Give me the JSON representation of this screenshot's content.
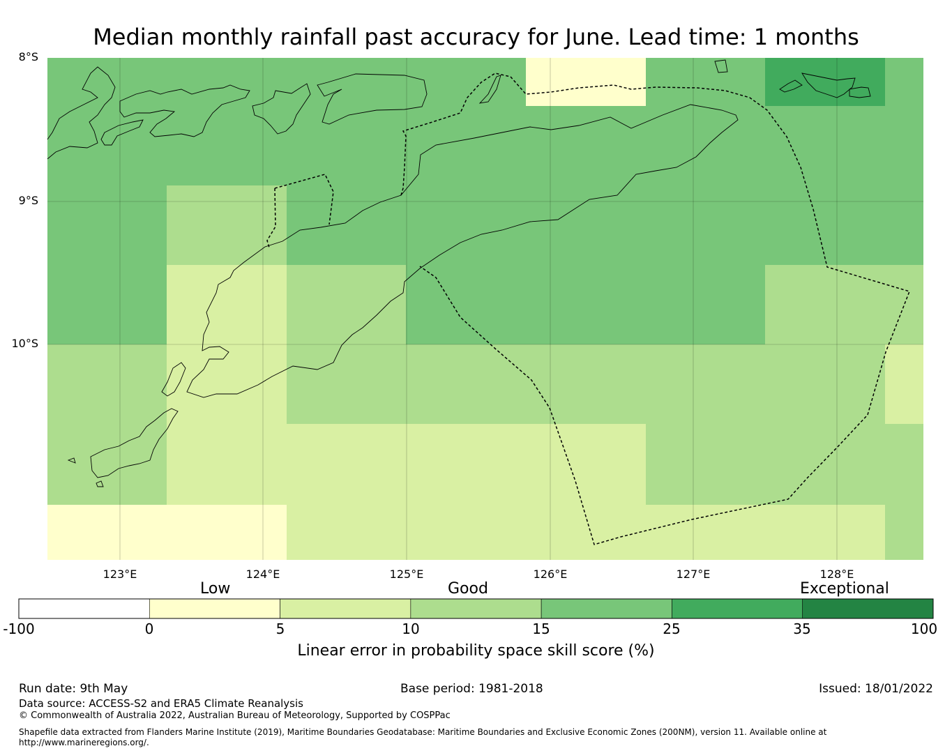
{
  "title": "Median monthly rainfall past accuracy for June. Lead time: 1 months",
  "map": {
    "lat_labels": [
      "8°S",
      "9°S",
      "10°S"
    ],
    "lon_labels": [
      "123°E",
      "124°E",
      "125°E",
      "126°E",
      "127°E",
      "128°E"
    ],
    "lon_range": [
      122.5,
      128.6
    ],
    "lat_range": [
      -8.0,
      -11.5
    ],
    "grid": true,
    "category_colors": {
      "low_0_5": "#ffffcc",
      "good_5_10": "#d9f0a3",
      "good_10_15": "#addd8e",
      "good_15_25": "#78c679",
      "exceptional_25_35": "#41ab5d",
      "exceptional_35_100": "#238443"
    }
  },
  "colorbar": {
    "category_labels": [
      "Low",
      "Good",
      "Exceptional"
    ],
    "ticks": [
      "-100",
      "0",
      "5",
      "10",
      "15",
      "25",
      "35",
      "100"
    ],
    "colors": [
      "#ffffff",
      "#ffffcc",
      "#d9f0a3",
      "#addd8e",
      "#78c679",
      "#41ab5d",
      "#238443"
    ],
    "caption": "Linear error in probability space skill score (%)"
  },
  "footer": {
    "run_date": "Run date: 9th May",
    "base_period": "Base period: 1981-2018",
    "issued": "Issued: 18/01/2022",
    "data_source": "Data source: ACCESS-S2 and ERA5 Climate Reanalysis",
    "copyright": "© Commonwealth of Australia 2022, Australian Bureau of Meteorology, Supported by COSPPac",
    "shapefile": "Shapefile data extracted from Flanders Marine Institute (2019), Maritime Boundaries Geodatabase: Maritime Boundaries and Exclusive Economic Zones (200NM), version 11. Available online at http://www.marineregions.org/."
  }
}
